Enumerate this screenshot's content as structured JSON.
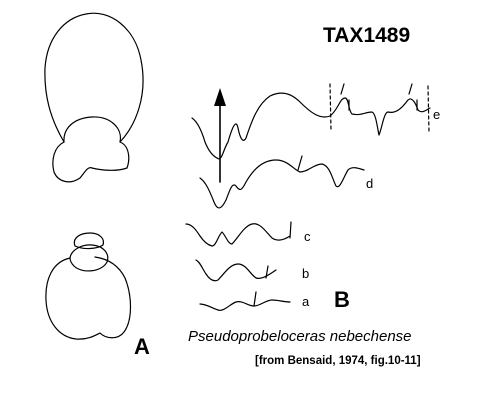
{
  "title": "TAX1489",
  "panels": {
    "a_label": "A",
    "b_label": "B"
  },
  "sutures": {
    "a": "a",
    "b": "b",
    "c": "c",
    "d": "d",
    "e": "e"
  },
  "species": "Pseudoprobeloceras nebechense",
  "citation": "[from Bensaid, 1974, fig.10-11]",
  "colors": {
    "ink": "#000000",
    "background": "#ffffff"
  }
}
